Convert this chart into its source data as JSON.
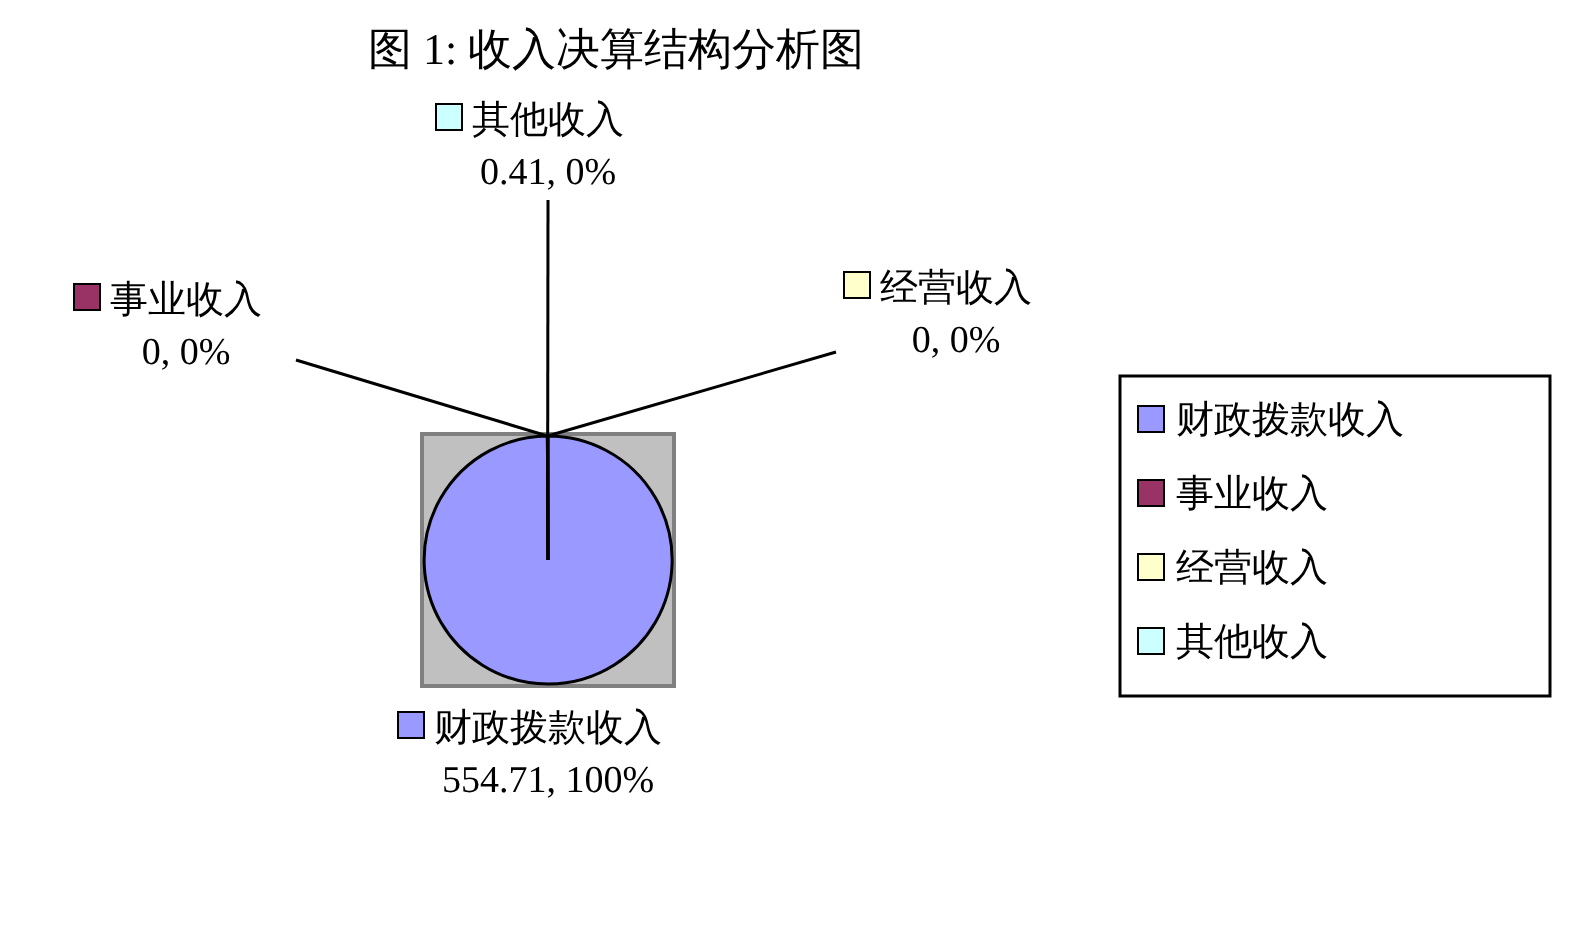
{
  "chart_data": {
    "type": "pie",
    "title": "图 1:  收入决算结构分析图",
    "categories": [
      "财政拨款收入",
      "事业收入",
      "经营收入",
      "其他收入"
    ],
    "values": [
      554.71,
      0,
      0,
      0.41
    ],
    "colors": [
      "#9999ff",
      "#993366",
      "#ffffcc",
      "#ccffff"
    ],
    "value_labels": [
      "554.71, 100%",
      "0, 0%",
      "0, 0%",
      "0.41, 0%"
    ],
    "legend": "right"
  }
}
